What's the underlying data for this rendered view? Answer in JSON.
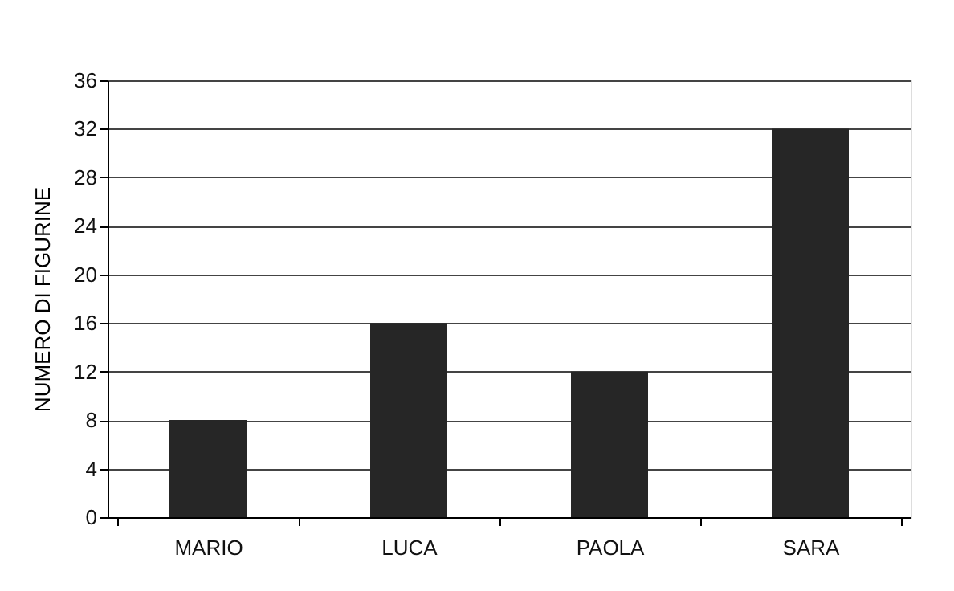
{
  "chart_data": {
    "type": "bar",
    "ylabel": "NUMERO DI FIGURINE",
    "categories": [
      "MARIO",
      "LUCA",
      "PAOLA",
      "SARA"
    ],
    "values": [
      8,
      16,
      12,
      32
    ],
    "color": "#262626",
    "ylim": [
      0,
      36
    ],
    "yticks": [
      0,
      4,
      8,
      12,
      16,
      20,
      24,
      28,
      32,
      36
    ],
    "grid": "y"
  }
}
